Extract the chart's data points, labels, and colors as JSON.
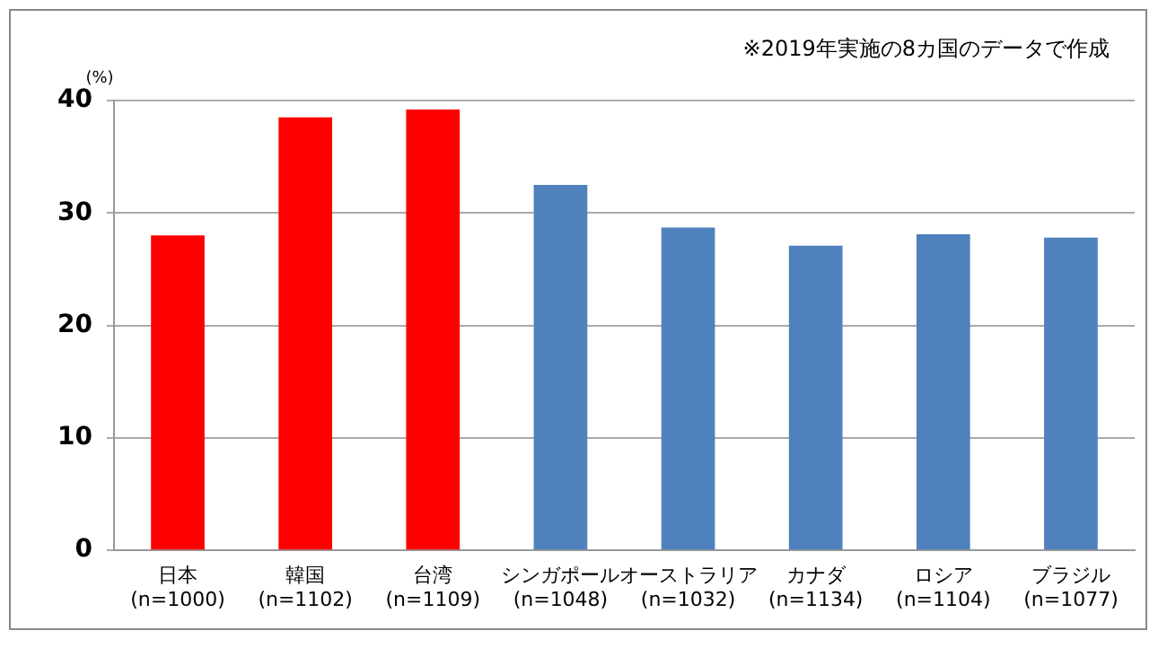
{
  "chart_data": {
    "type": "bar",
    "ylabel": "(%)",
    "annotations": [
      "※2019年実施の8カ国のデータで作成"
    ],
    "categories": [
      "日本\n(n=1000)",
      "韓国\n(n=1102)",
      "台湾\n(n=1109)",
      "シンガポール\n(n=1048)",
      "オーストラリア\n(n=1032)",
      "カナダ\n(n=1134)",
      "ロシア\n(n=1104)",
      "ブラジル\n(n=1077)"
    ],
    "values": [
      28.0,
      38.5,
      39.2,
      32.5,
      28.7,
      27.1,
      28.1,
      27.8
    ],
    "colors": [
      "#ff0000",
      "#ff0000",
      "#ff0000",
      "#4f81bd",
      "#4f81bd",
      "#4f81bd",
      "#4f81bd",
      "#4f81bd"
    ],
    "ylim": [
      0,
      40
    ],
    "yticks": [
      0,
      10,
      20,
      30,
      40
    ],
    "grid": "y",
    "legend": false
  }
}
